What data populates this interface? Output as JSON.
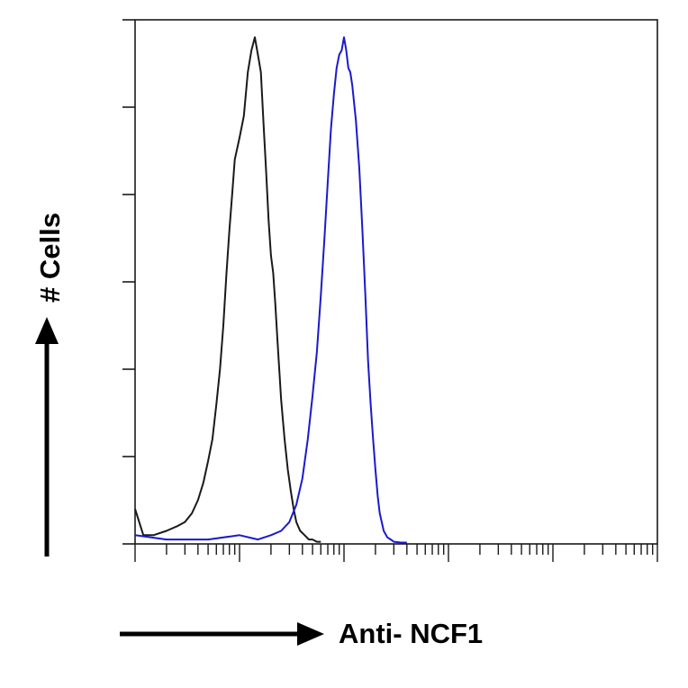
{
  "chart_data": {
    "type": "line",
    "title": "",
    "xlabel": "Anti- NCF1",
    "ylabel": "# Cells",
    "x_scale": "log",
    "xlim": [
      1,
      100000
    ],
    "ylim": [
      0,
      120
    ],
    "y_tick_count": 7,
    "grid": false,
    "legend": "none",
    "series": [
      {
        "color": "#1a1a1a",
        "x": [
          1,
          1.2,
          1.5,
          2,
          2.5,
          3,
          3.5,
          4,
          4.5,
          5,
          5.5,
          6,
          6.5,
          7,
          7.5,
          8,
          8.5,
          9,
          10,
          11,
          12,
          13,
          14,
          15,
          16,
          17,
          18,
          19,
          20,
          21,
          22,
          23,
          24,
          25,
          27,
          29,
          31,
          33,
          35,
          38,
          42,
          46,
          50,
          55,
          60
        ],
        "y": [
          8,
          2,
          2,
          3,
          4,
          5,
          7,
          10,
          14,
          19,
          24,
          32,
          40,
          50,
          62,
          72,
          80,
          88,
          93,
          98,
          108,
          113,
          116,
          112,
          108,
          96,
          85,
          74,
          66,
          62,
          55,
          47,
          40,
          33,
          24,
          17,
          12,
          8,
          5,
          3,
          2,
          1,
          1,
          0.5,
          0.5
        ]
      },
      {
        "color": "#1a1acc",
        "x": [
          1,
          2,
          5,
          10,
          15,
          20,
          25,
          30,
          35,
          40,
          45,
          50,
          55,
          60,
          65,
          70,
          75,
          80,
          85,
          90,
          95,
          100,
          105,
          110,
          115,
          120,
          130,
          140,
          150,
          160,
          170,
          180,
          190,
          200,
          210,
          220,
          240,
          260,
          280,
          300,
          350,
          400
        ],
        "y": [
          2,
          1,
          1,
          2,
          1,
          2,
          3,
          5,
          9,
          15,
          24,
          34,
          44,
          57,
          70,
          83,
          95,
          103,
          109,
          112,
          113,
          116,
          113,
          109,
          108,
          105,
          97,
          86,
          72,
          57,
          42,
          32,
          24,
          17,
          11,
          7,
          3,
          1.5,
          1,
          0.5,
          0.3,
          0.3
        ]
      }
    ]
  }
}
